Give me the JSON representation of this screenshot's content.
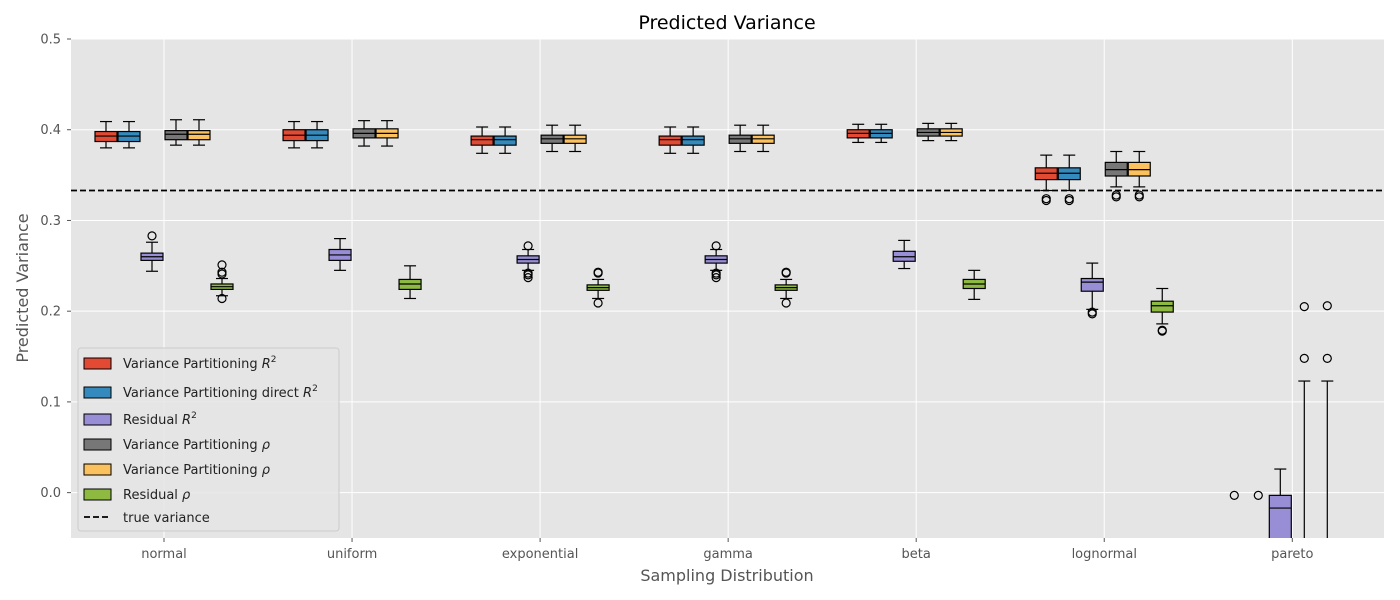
{
  "chart_data": {
    "type": "box",
    "title": "Predicted Variance",
    "xlabel": "Sampling Distribution",
    "ylabel": "Predicted Variance",
    "ylim": [
      -0.05,
      0.5
    ],
    "yticks": [
      "0.0",
      "0.1",
      "0.2",
      "0.3",
      "0.4",
      "0.5"
    ],
    "ytick_values": [
      0.0,
      0.1,
      0.2,
      0.3,
      0.4,
      0.5
    ],
    "grid": true,
    "legend_position": "lower-left",
    "categories": [
      "normal",
      "uniform",
      "exponential",
      "gamma",
      "beta",
      "lognormal",
      "pareto"
    ],
    "reference_line": {
      "name": "true variance",
      "value": 0.333,
      "style": "dashed",
      "color": "#000000"
    },
    "series": [
      {
        "name": "Variance Partitioning $R^2$",
        "label_main": "Variance Partitioning ",
        "label_sup": "R",
        "label_exp": "2",
        "color": "#E24A33",
        "boxes": [
          {
            "wl": 0.38,
            "q1": 0.387,
            "med": 0.393,
            "q3": 0.398,
            "wh": 0.409,
            "fliers": []
          },
          {
            "wl": 0.38,
            "q1": 0.388,
            "med": 0.394,
            "q3": 0.4,
            "wh": 0.409,
            "fliers": []
          },
          {
            "wl": 0.374,
            "q1": 0.383,
            "med": 0.389,
            "q3": 0.393,
            "wh": 0.403,
            "fliers": []
          },
          {
            "wl": 0.374,
            "q1": 0.383,
            "med": 0.389,
            "q3": 0.393,
            "wh": 0.403,
            "fliers": []
          },
          {
            "wl": 0.386,
            "q1": 0.391,
            "med": 0.396,
            "q3": 0.4,
            "wh": 0.406,
            "fliers": []
          },
          {
            "wl": 0.333,
            "q1": 0.345,
            "med": 0.352,
            "q3": 0.358,
            "wh": 0.372,
            "fliers": [
              0.324,
              0.322
            ]
          },
          null
        ]
      },
      {
        "name": "Variance Partitioning direct $R^2$",
        "label_main": "Variance Partitioning direct ",
        "label_sup": "R",
        "label_exp": "2",
        "color": "#348ABD",
        "boxes": [
          {
            "wl": 0.38,
            "q1": 0.387,
            "med": 0.393,
            "q3": 0.398,
            "wh": 0.409,
            "fliers": []
          },
          {
            "wl": 0.38,
            "q1": 0.388,
            "med": 0.394,
            "q3": 0.4,
            "wh": 0.409,
            "fliers": []
          },
          {
            "wl": 0.374,
            "q1": 0.383,
            "med": 0.389,
            "q3": 0.393,
            "wh": 0.403,
            "fliers": []
          },
          {
            "wl": 0.374,
            "q1": 0.383,
            "med": 0.389,
            "q3": 0.393,
            "wh": 0.403,
            "fliers": []
          },
          {
            "wl": 0.386,
            "q1": 0.391,
            "med": 0.396,
            "q3": 0.4,
            "wh": 0.406,
            "fliers": []
          },
          {
            "wl": 0.333,
            "q1": 0.345,
            "med": 0.352,
            "q3": 0.358,
            "wh": 0.372,
            "fliers": [
              0.324,
              0.322
            ]
          },
          null
        ]
      },
      {
        "name": "Residual $R^2$",
        "label_main": "Residual ",
        "label_sup": "R",
        "label_exp": "2",
        "color": "#988ED5",
        "boxes": [
          {
            "wl": 0.244,
            "q1": 0.256,
            "med": 0.26,
            "q3": 0.264,
            "wh": 0.276,
            "fliers": [
              0.283
            ]
          },
          {
            "wl": 0.245,
            "q1": 0.256,
            "med": 0.262,
            "q3": 0.268,
            "wh": 0.28,
            "fliers": []
          },
          {
            "wl": 0.245,
            "q1": 0.253,
            "med": 0.257,
            "q3": 0.261,
            "wh": 0.268,
            "fliers": [
              0.272,
              0.242,
              0.24,
              0.237
            ]
          },
          {
            "wl": 0.245,
            "q1": 0.253,
            "med": 0.257,
            "q3": 0.261,
            "wh": 0.268,
            "fliers": [
              0.272,
              0.242,
              0.24,
              0.237
            ]
          },
          {
            "wl": 0.247,
            "q1": 0.255,
            "med": 0.26,
            "q3": 0.266,
            "wh": 0.278,
            "fliers": []
          },
          {
            "wl": 0.202,
            "q1": 0.222,
            "med": 0.232,
            "q3": 0.236,
            "wh": 0.253,
            "fliers": [
              0.199,
              0.197
            ]
          },
          {
            "wl": -0.07,
            "q1": -0.065,
            "med": -0.017,
            "q3": -0.003,
            "wh": 0.026,
            "fliers": [
              -0.003,
              -0.003
            ]
          }
        ]
      },
      {
        "name": "Variance Partitioning $\\rho$",
        "label_main": "Variance Partitioning ",
        "label_sup": "ρ",
        "label_exp": "",
        "color": "#777777",
        "boxes": [
          {
            "wl": 0.383,
            "q1": 0.389,
            "med": 0.395,
            "q3": 0.399,
            "wh": 0.411,
            "fliers": []
          },
          {
            "wl": 0.382,
            "q1": 0.391,
            "med": 0.396,
            "q3": 0.401,
            "wh": 0.41,
            "fliers": []
          },
          {
            "wl": 0.376,
            "q1": 0.385,
            "med": 0.39,
            "q3": 0.394,
            "wh": 0.405,
            "fliers": []
          },
          {
            "wl": 0.376,
            "q1": 0.385,
            "med": 0.39,
            "q3": 0.394,
            "wh": 0.405,
            "fliers": []
          },
          {
            "wl": 0.388,
            "q1": 0.393,
            "med": 0.397,
            "q3": 0.401,
            "wh": 0.407,
            "fliers": []
          },
          {
            "wl": 0.337,
            "q1": 0.349,
            "med": 0.356,
            "q3": 0.364,
            "wh": 0.376,
            "fliers": [
              0.328,
              0.326
            ]
          },
          null
        ]
      },
      {
        "name": "Variance Partitioning $\\rho$",
        "label_main": "Variance Partitioning ",
        "label_sup": "ρ",
        "label_exp": "",
        "color": "#FBC15E",
        "boxes": [
          {
            "wl": 0.383,
            "q1": 0.389,
            "med": 0.395,
            "q3": 0.399,
            "wh": 0.411,
            "fliers": []
          },
          {
            "wl": 0.382,
            "q1": 0.391,
            "med": 0.396,
            "q3": 0.401,
            "wh": 0.41,
            "fliers": []
          },
          {
            "wl": 0.376,
            "q1": 0.385,
            "med": 0.39,
            "q3": 0.394,
            "wh": 0.405,
            "fliers": []
          },
          {
            "wl": 0.376,
            "q1": 0.385,
            "med": 0.39,
            "q3": 0.394,
            "wh": 0.405,
            "fliers": []
          },
          {
            "wl": 0.388,
            "q1": 0.393,
            "med": 0.397,
            "q3": 0.401,
            "wh": 0.407,
            "fliers": []
          },
          {
            "wl": 0.337,
            "q1": 0.349,
            "med": 0.356,
            "q3": 0.364,
            "wh": 0.376,
            "fliers": [
              0.328,
              0.326
            ]
          },
          null
        ]
      },
      {
        "name": "Residual $\\rho$",
        "label_main": "Residual ",
        "label_sup": "ρ",
        "label_exp": "",
        "color": "#8EBA42",
        "boxes": [
          {
            "wl": 0.217,
            "q1": 0.224,
            "med": 0.227,
            "q3": 0.23,
            "wh": 0.236,
            "fliers": [
              0.251,
              0.243,
              0.241,
              0.214
            ]
          },
          {
            "wl": 0.214,
            "q1": 0.224,
            "med": 0.23,
            "q3": 0.235,
            "wh": 0.25,
            "fliers": []
          },
          {
            "wl": 0.214,
            "q1": 0.223,
            "med": 0.226,
            "q3": 0.229,
            "wh": 0.235,
            "fliers": [
              0.243,
              0.242,
              0.209
            ]
          },
          {
            "wl": 0.214,
            "q1": 0.223,
            "med": 0.226,
            "q3": 0.229,
            "wh": 0.235,
            "fliers": [
              0.243,
              0.242,
              0.209
            ]
          },
          {
            "wl": 0.213,
            "q1": 0.225,
            "med": 0.23,
            "q3": 0.235,
            "wh": 0.245,
            "fliers": []
          },
          {
            "wl": 0.186,
            "q1": 0.199,
            "med": 0.206,
            "q3": 0.211,
            "wh": 0.225,
            "fliers": [
              0.179,
              0.178
            ]
          },
          null
        ]
      }
    ],
    "pareto_extra_whiskers": [
      {
        "wl": -0.07,
        "wh": 0.123,
        "fliers": [
          0.205,
          0.148
        ]
      },
      {
        "wl": -0.07,
        "wh": 0.123,
        "fliers": [
          0.206,
          0.148
        ]
      }
    ]
  }
}
